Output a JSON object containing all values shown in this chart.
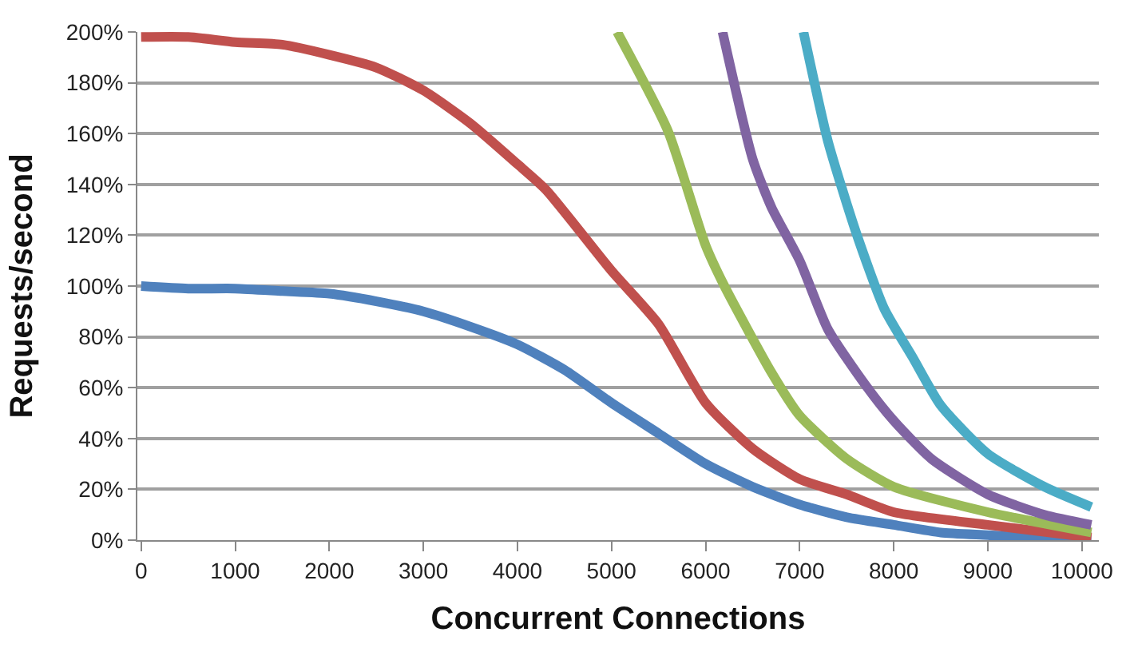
{
  "chart_data": {
    "type": "line",
    "xlabel": "Concurrent Connections",
    "ylabel": "Requests/second",
    "xlim": [
      -40,
      10180
    ],
    "xticks": [
      0,
      1000,
      2000,
      3000,
      4000,
      5000,
      6000,
      7000,
      8000,
      9000,
      10000
    ],
    "ylim": [
      0,
      200
    ],
    "yticks": [
      {
        "value": 0,
        "label": "0%"
      },
      {
        "value": 20,
        "label": "20%"
      },
      {
        "value": 40,
        "label": "40%"
      },
      {
        "value": 60,
        "label": "60%"
      },
      {
        "value": 80,
        "label": "80%"
      },
      {
        "value": 100,
        "label": "100%"
      },
      {
        "value": 120,
        "label": "120%"
      },
      {
        "value": 140,
        "label": "140%"
      },
      {
        "value": 160,
        "label": "160%"
      },
      {
        "value": 180,
        "label": "180%"
      },
      {
        "value": 200,
        "label": "200%"
      }
    ],
    "grid": "y",
    "marker": "none",
    "line_style": "solid",
    "series": [
      {
        "color": "#4f81bd",
        "x": [
          0,
          500,
          1000,
          1500,
          2000,
          2500,
          3000,
          3500,
          4000,
          4500,
          5000,
          5500,
          6000,
          6500,
          7000,
          7500,
          8000,
          8500,
          9000,
          9500,
          10100
        ],
        "values": [
          100,
          99,
          99,
          98,
          97,
          94,
          90,
          84,
          77,
          67,
          54,
          42,
          30,
          21,
          14,
          9,
          6,
          3,
          2,
          1,
          1
        ]
      },
      {
        "color": "#c0504d",
        "x": [
          0,
          500,
          1000,
          1500,
          2000,
          2500,
          3000,
          3500,
          4000,
          4300,
          5000,
          5500,
          6000,
          6500,
          7000,
          7500,
          8000,
          9000,
          10100
        ],
        "values": [
          198,
          198,
          196,
          195,
          191,
          186,
          177,
          164,
          148,
          138,
          106,
          85,
          54,
          36,
          24,
          18,
          11,
          6,
          1
        ]
      },
      {
        "color": "#9bbb59",
        "x": [
          5060,
          5600,
          6000,
          6200,
          6700,
          7000,
          7500,
          8000,
          9000,
          10100
        ],
        "values": [
          200,
          161,
          116,
          100,
          66,
          49,
          32,
          21,
          11,
          3
        ]
      },
      {
        "color": "#8064a2",
        "x": [
          6180,
          6500,
          6700,
          7000,
          7300,
          7700,
          8000,
          8400,
          9000,
          9600,
          10100
        ],
        "values": [
          200,
          150,
          131,
          110,
          83,
          61,
          47,
          32,
          18,
          10,
          6
        ]
      },
      {
        "color": "#4bacc6",
        "x": [
          7040,
          7300,
          7600,
          7900,
          8200,
          8500,
          9000,
          9600,
          10100
        ],
        "values": [
          200,
          157,
          121,
          91,
          72,
          53,
          34,
          21,
          13
        ]
      }
    ]
  }
}
